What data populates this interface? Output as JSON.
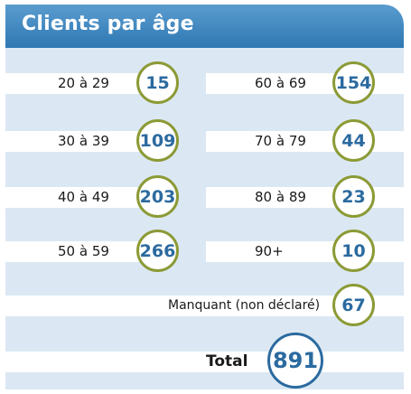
{
  "title": "Clients par âge",
  "left": [
    {
      "label": "20 à 29",
      "value": "15"
    },
    {
      "label": "30 à 39",
      "value": "109"
    },
    {
      "label": "40 à 49",
      "value": "203"
    },
    {
      "label": "50 à 59",
      "value": "266"
    }
  ],
  "right": [
    {
      "label": "60 à 69",
      "value": "154"
    },
    {
      "label": "70 à 79",
      "value": "44"
    },
    {
      "label": "80 à 89",
      "value": "23"
    },
    {
      "label": "90+",
      "value": "10"
    }
  ],
  "missing": {
    "label": "Manquant (non déclaré)",
    "value": "67"
  },
  "total": {
    "label": "Total",
    "value": "891"
  }
}
